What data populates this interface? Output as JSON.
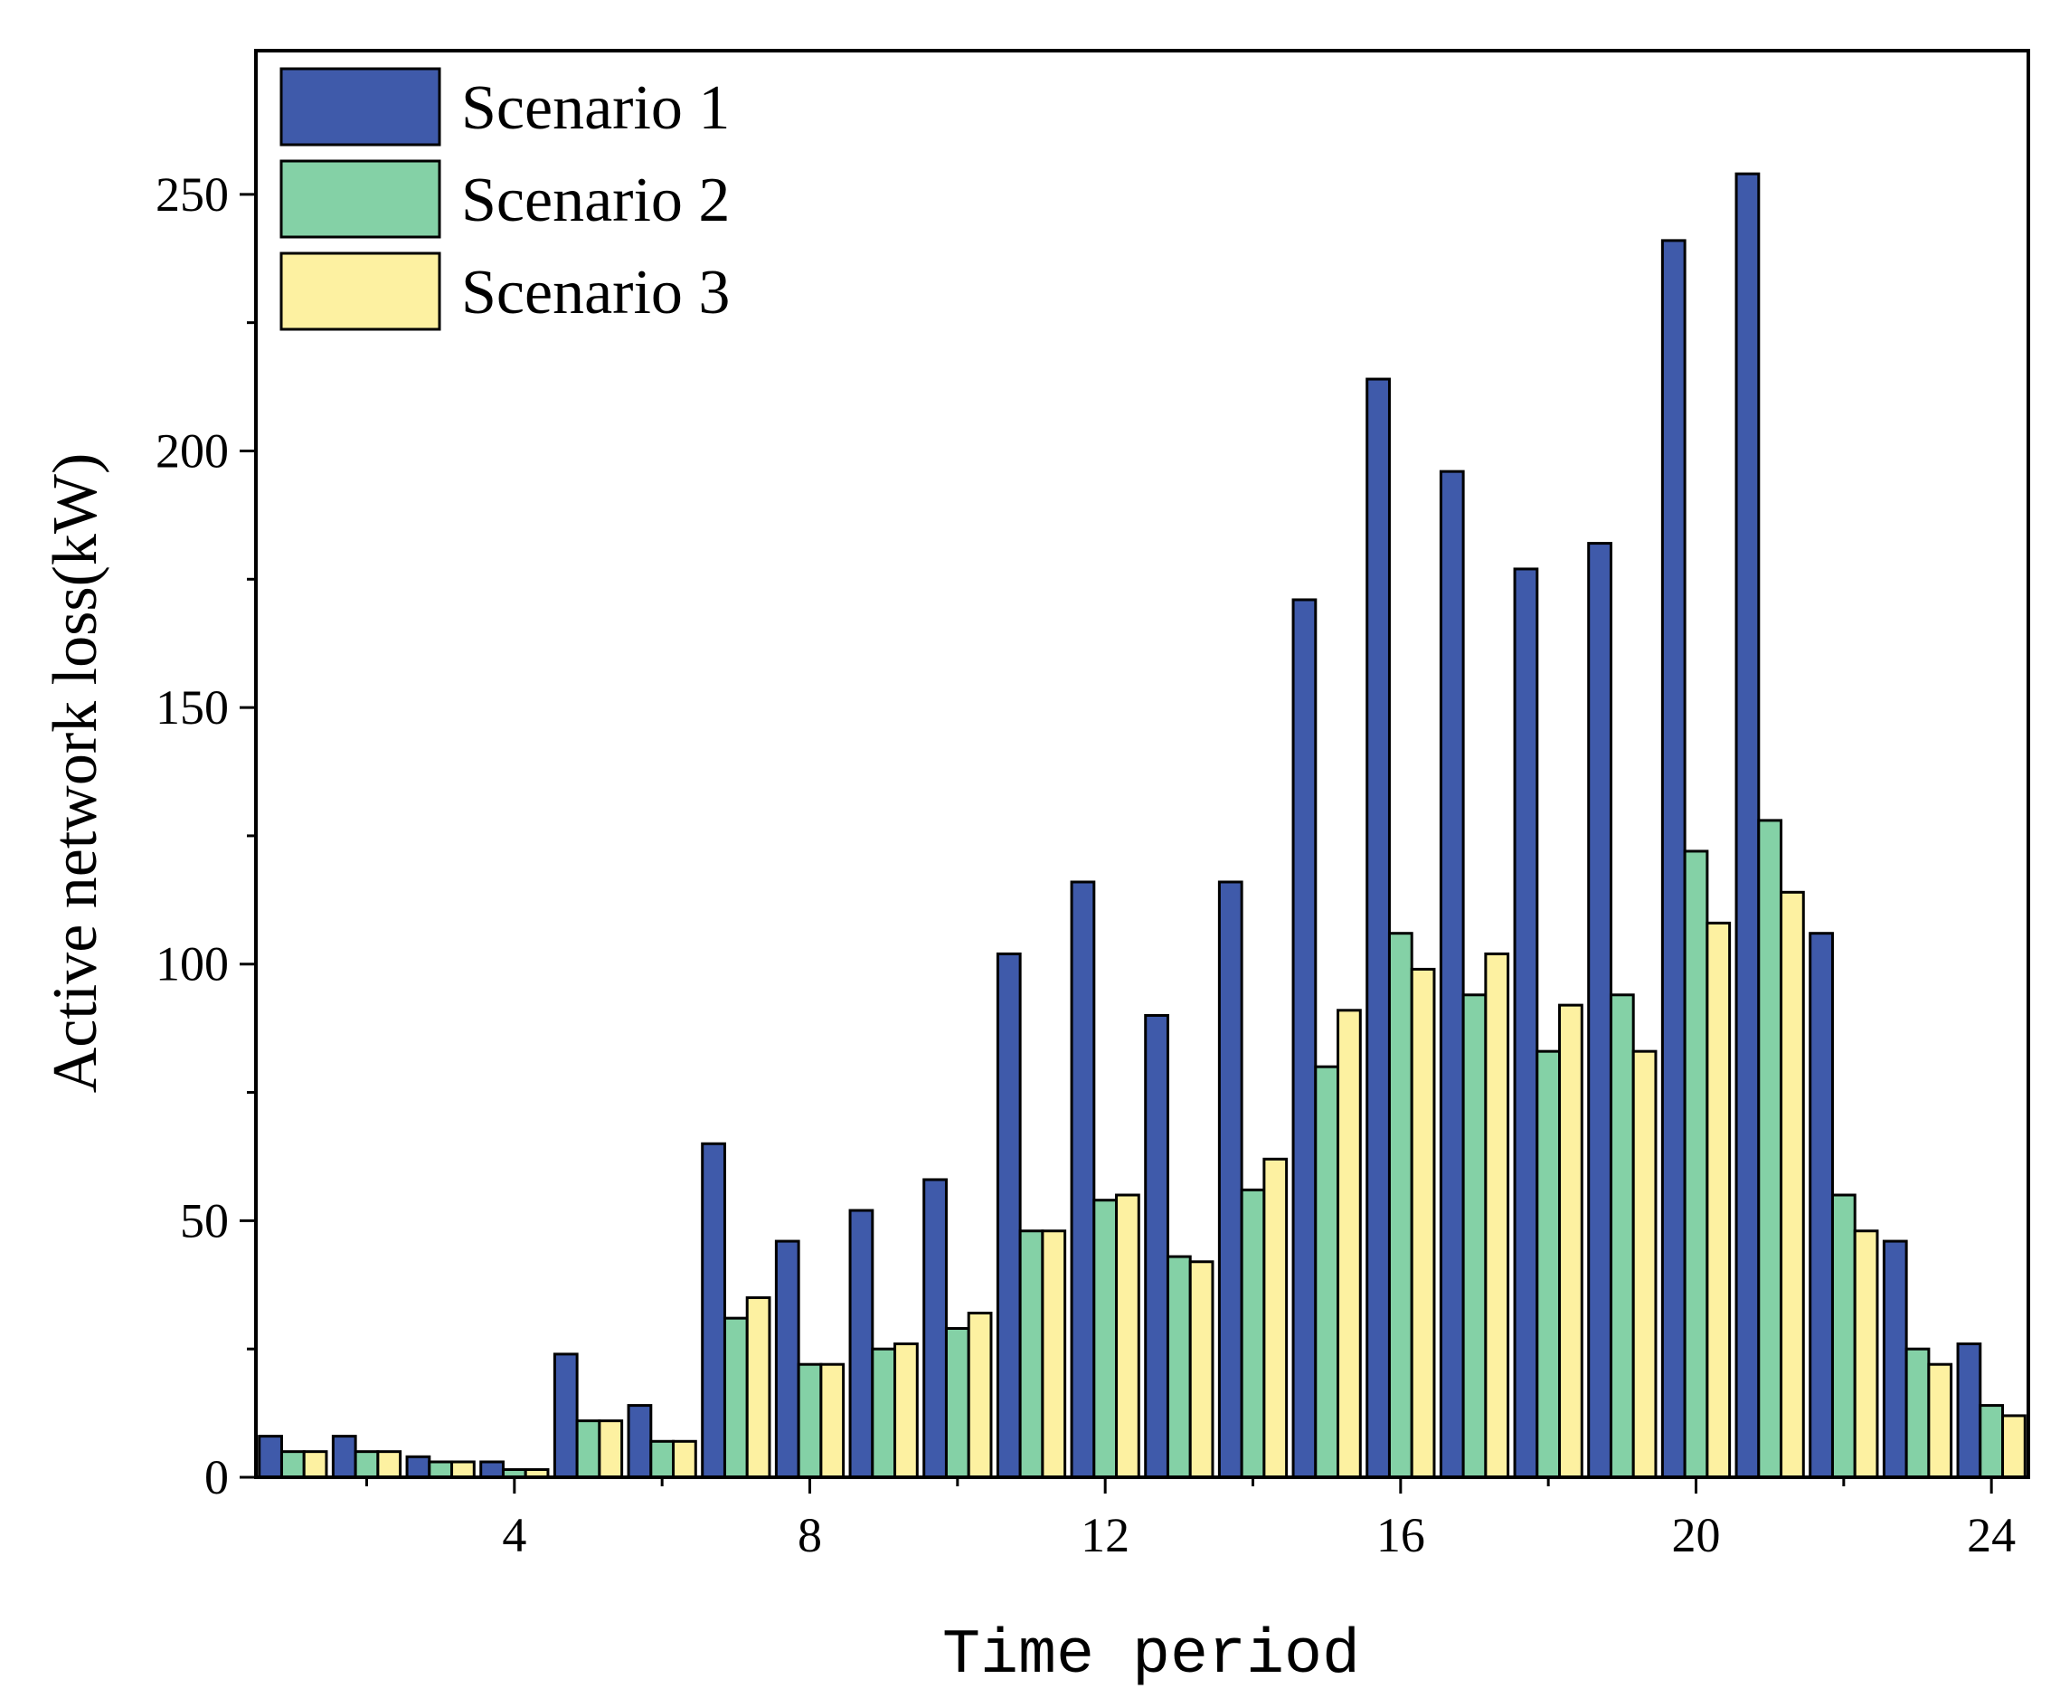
{
  "chart_data": {
    "type": "bar",
    "title": "",
    "xlabel": "Time period",
    "ylabel": "Active network loss(kW)",
    "categories": [
      1,
      2,
      3,
      4,
      5,
      6,
      7,
      8,
      9,
      10,
      11,
      12,
      13,
      14,
      15,
      16,
      17,
      18,
      19,
      20,
      21,
      22,
      23,
      24
    ],
    "xlim": [
      0.5,
      24.5
    ],
    "xticks": [
      4,
      8,
      12,
      16,
      20,
      24
    ],
    "ylim": [
      0,
      278
    ],
    "yticks": [
      0,
      50,
      100,
      150,
      200,
      250
    ],
    "grid": false,
    "legend_position": "top-left",
    "series": [
      {
        "name": "Scenario 1",
        "color": "#3F5AAA",
        "values": [
          8,
          8,
          4,
          3,
          24,
          14,
          65,
          46,
          52,
          58,
          102,
          116,
          90,
          116,
          171,
          214,
          196,
          177,
          182,
          241,
          254,
          106,
          46,
          26
        ]
      },
      {
        "name": "Scenario 2",
        "color": "#84D1A6",
        "values": [
          5,
          5,
          3,
          1.5,
          11,
          7,
          31,
          22,
          25,
          29,
          48,
          54,
          43,
          56,
          80,
          106,
          94,
          83,
          94,
          122,
          128,
          55,
          25,
          14
        ]
      },
      {
        "name": "Scenario 3",
        "color": "#FDF1A1",
        "values": [
          5,
          5,
          3,
          1.5,
          11,
          7,
          35,
          22,
          26,
          32,
          48,
          55,
          42,
          62,
          91,
          99,
          102,
          92,
          83,
          108,
          114,
          48,
          22,
          12
        ]
      }
    ]
  }
}
